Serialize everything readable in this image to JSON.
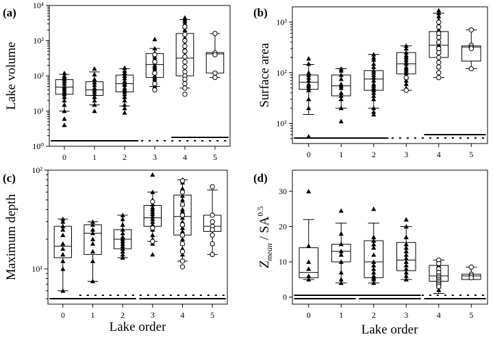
{
  "x_label": "Lake order",
  "chart_data": [
    {
      "panel": "(a)",
      "type": "box",
      "ylabel": "Lake volume",
      "yscale": "log",
      "ylim": [
        1,
        10000
      ],
      "yticks": [
        1,
        10,
        100,
        1000,
        10000
      ],
      "ytick_labels": [
        "10⁰",
        "10¹",
        "10²",
        "10³",
        "10⁴"
      ],
      "categories": [
        "0",
        "1",
        "2",
        "3",
        "4",
        "5"
      ],
      "boxes": [
        {
          "order": 0,
          "q1": 30,
          "median": 48,
          "q3": 78,
          "whisker_low": 10,
          "whisker_high": 110
        },
        {
          "order": 1,
          "q1": 28,
          "median": 40,
          "q3": 68,
          "whisker_low": 15,
          "whisker_high": 130
        },
        {
          "order": 2,
          "q1": 35,
          "median": 60,
          "q3": 105,
          "whisker_low": 14,
          "whisker_high": 160
        },
        {
          "order": 3,
          "q1": 90,
          "median": 210,
          "q3": 430,
          "whisker_low": 50,
          "whisker_high": 600
        },
        {
          "order": 4,
          "q1": 100,
          "median": 320,
          "q3": 1600,
          "whisker_low": 45,
          "whisker_high": 4000
        },
        {
          "order": 5,
          "q1": 120,
          "median": 420,
          "q3": 460,
          "whisker_low": 90,
          "whisker_high": 1600
        }
      ],
      "points": [
        {
          "order": 0,
          "y": [
            120,
            100,
            90,
            80,
            70,
            60,
            50,
            45,
            40,
            35,
            30,
            25,
            20,
            15,
            10,
            6,
            4
          ],
          "marker": "triangle"
        },
        {
          "order": 1,
          "y": [
            160,
            110,
            80,
            65,
            55,
            45,
            40,
            35,
            30,
            25,
            20,
            15,
            10
          ],
          "marker": "triangle"
        },
        {
          "order": 2,
          "y": [
            170,
            140,
            120,
            100,
            85,
            70,
            60,
            55,
            45,
            40,
            35,
            30,
            25,
            20,
            15,
            12,
            9
          ],
          "marker": "triangle"
        },
        {
          "order": 3,
          "y": [
            1100,
            600,
            450,
            400,
            350,
            300,
            250,
            200,
            180,
            160,
            140,
            120,
            100,
            90,
            80,
            70,
            60,
            50
          ],
          "marker": "triangle"
        },
        {
          "order": 3,
          "y": [
            400,
            250,
            120,
            60,
            40
          ],
          "marker": "circle"
        },
        {
          "order": 4,
          "y": [
            4500,
            4000,
            3500,
            3000,
            2500,
            2000,
            1500,
            1200,
            1000,
            800,
            600,
            500,
            400
          ],
          "marker": "triangle"
        },
        {
          "order": 4,
          "y": [
            2500,
            1500,
            1000,
            700,
            500,
            350,
            250,
            180,
            130,
            100,
            80,
            60,
            45,
            30
          ],
          "marker": "circle"
        },
        {
          "order": 5,
          "y": [
            1600,
            450,
            400,
            120,
            90
          ],
          "marker": "circle"
        }
      ],
      "groups": [
        {
          "from": 0,
          "to": 2,
          "level": 0,
          "style": "solid"
        },
        {
          "from": 3,
          "to": 5,
          "level": 0,
          "style": "dashed"
        },
        {
          "from": 4,
          "to": 5,
          "level": 1,
          "style": "solid"
        }
      ]
    },
    {
      "panel": "(b)",
      "type": "box",
      "ylabel": "Surface area",
      "yscale": "log",
      "ylim": [
        4,
        2000
      ],
      "yticks": [
        10,
        100,
        1000
      ],
      "ytick_labels": [
        "10¹",
        "10²",
        "10³"
      ],
      "categories": [
        "0",
        "1",
        "2",
        "3",
        "4",
        "5"
      ],
      "boxes": [
        {
          "order": 0,
          "q1": 47,
          "median": 65,
          "q3": 90,
          "whisker_low": 15,
          "whisker_high": 145
        },
        {
          "order": 1,
          "q1": 35,
          "median": 55,
          "q3": 90,
          "whisker_low": 20,
          "whisker_high": 120
        },
        {
          "order": 2,
          "q1": 45,
          "median": 75,
          "q3": 110,
          "whisker_low": 20,
          "whisker_high": 230
        },
        {
          "order": 3,
          "q1": 95,
          "median": 150,
          "q3": 250,
          "whisker_low": 45,
          "whisker_high": 340
        },
        {
          "order": 4,
          "q1": 200,
          "median": 350,
          "q3": 650,
          "whisker_low": 80,
          "whisker_high": 1500
        },
        {
          "order": 5,
          "q1": 170,
          "median": 320,
          "q3": 340,
          "whisker_low": 120,
          "whisker_high": 700
        }
      ],
      "points": [
        {
          "order": 0,
          "y": [
            190,
            150,
            100,
            90,
            80,
            70,
            60,
            55,
            50,
            45,
            30,
            20,
            5.5
          ],
          "marker": "triangle"
        },
        {
          "order": 1,
          "y": [
            120,
            110,
            90,
            75,
            60,
            55,
            50,
            40,
            35,
            30,
            20,
            11
          ],
          "marker": "triangle"
        },
        {
          "order": 2,
          "y": [
            230,
            200,
            180,
            150,
            130,
            110,
            100,
            90,
            80,
            70,
            60,
            55,
            50,
            45,
            40,
            35,
            30,
            20,
            17,
            15
          ],
          "marker": "triangle"
        },
        {
          "order": 3,
          "y": [
            340,
            300,
            250,
            220,
            200,
            180,
            160,
            150,
            130,
            120,
            110,
            100,
            90,
            80,
            70,
            60,
            50
          ],
          "marker": "triangle"
        },
        {
          "order": 3,
          "y": [
            80,
            45
          ],
          "marker": "circle"
        },
        {
          "order": 4,
          "y": [
            1700,
            1500,
            1300,
            1100,
            900,
            700,
            600,
            500,
            400,
            350,
            300,
            250
          ],
          "marker": "triangle"
        },
        {
          "order": 4,
          "y": [
            1000,
            800,
            600,
            500,
            400,
            300,
            250,
            200,
            160,
            130,
            100,
            80
          ],
          "marker": "circle"
        },
        {
          "order": 5,
          "y": [
            700,
            350,
            320,
            300,
            120
          ],
          "marker": "circle"
        }
      ],
      "groups": [
        {
          "from": 0,
          "to": 2,
          "level": 0,
          "style": "solid"
        },
        {
          "from": 3,
          "to": 5,
          "level": 0,
          "style": "dashed"
        },
        {
          "from": 4,
          "to": 5,
          "level": 1,
          "style": "solid"
        }
      ]
    },
    {
      "panel": "(c)",
      "type": "box",
      "ylabel": "Maximum depth",
      "yscale": "log",
      "ylim": [
        4.4,
        100
      ],
      "yticks": [
        10,
        100
      ],
      "ytick_labels": [
        "10¹",
        "10²"
      ],
      "categories": [
        "0",
        "1",
        "2",
        "3",
        "4",
        "5"
      ],
      "boxes": [
        {
          "order": 0,
          "q1": 13,
          "median": 17,
          "q3": 27,
          "whisker_low": 6,
          "whisker_high": 32
        },
        {
          "order": 1,
          "q1": 14,
          "median": 23,
          "q3": 28,
          "whisker_low": 7.5,
          "whisker_high": 30
        },
        {
          "order": 2,
          "q1": 16,
          "median": 20,
          "q3": 25,
          "whisker_low": 13,
          "whisker_high": 35
        },
        {
          "order": 3,
          "q1": 27,
          "median": 33,
          "q3": 44,
          "whisker_low": 19,
          "whisker_high": 60
        },
        {
          "order": 4,
          "q1": 22,
          "median": 34,
          "q3": 56,
          "whisker_low": 12,
          "whisker_high": 80
        },
        {
          "order": 5,
          "q1": 24,
          "median": 27,
          "q3": 35,
          "whisker_low": 14,
          "whisker_high": 63
        }
      ],
      "points": [
        {
          "order": 0,
          "y": [
            32,
            30,
            27,
            25,
            22,
            18,
            16,
            14,
            12,
            10,
            6
          ],
          "marker": "triangle"
        },
        {
          "order": 1,
          "y": [
            30,
            28,
            25,
            23,
            20,
            18,
            15,
            12,
            7.5
          ],
          "marker": "triangle"
        },
        {
          "order": 2,
          "y": [
            35,
            32,
            28,
            25,
            23,
            21,
            20,
            19,
            18,
            17,
            16,
            15,
            14,
            13
          ],
          "marker": "triangle"
        },
        {
          "order": 3,
          "y": [
            90,
            60,
            50,
            45,
            42,
            40,
            38,
            36,
            34,
            32,
            30,
            28,
            27,
            25,
            22,
            20,
            18,
            14
          ],
          "marker": "triangle"
        },
        {
          "order": 3,
          "y": [
            48,
            26,
            19
          ],
          "marker": "circle"
        },
        {
          "order": 4,
          "y": [
            80,
            75,
            65,
            55,
            50,
            45,
            40,
            38,
            35,
            33,
            30,
            28,
            26,
            24,
            22,
            20,
            18,
            16,
            14
          ],
          "marker": "triangle"
        },
        {
          "order": 4,
          "y": [
            78,
            60,
            45,
            35,
            28,
            22,
            18,
            15,
            12,
            10.5
          ],
          "marker": "circle"
        },
        {
          "order": 5,
          "y": [
            68,
            35,
            30,
            27,
            25,
            22,
            18,
            14
          ],
          "marker": "circle"
        }
      ],
      "groups": [
        {
          "from": 0,
          "to": 2,
          "level": 0,
          "style": "solid"
        },
        {
          "from": 1,
          "to": 5,
          "level": 1,
          "style": "dashed"
        },
        {
          "from": 3,
          "to": 5,
          "level": 0,
          "style": "solid"
        }
      ]
    },
    {
      "panel": "(d)",
      "type": "box",
      "ylabel": "Z_mean / SA^0.5",
      "yscale": "linear",
      "ylim": [
        -2,
        36
      ],
      "yticks": [
        0,
        10,
        20,
        30
      ],
      "ytick_labels": [
        "0",
        "10",
        "20",
        "30"
      ],
      "categories": [
        "0",
        "1",
        "2",
        "3",
        "4",
        "5"
      ],
      "boxes": [
        {
          "order": 0,
          "q1": 5.5,
          "median": 7,
          "q3": 14,
          "whisker_low": 5,
          "whisker_high": 22
        },
        {
          "order": 1,
          "q1": 10,
          "median": 13,
          "q3": 15,
          "whisker_low": 4,
          "whisker_high": 21
        },
        {
          "order": 2,
          "q1": 5.5,
          "median": 10,
          "q3": 16,
          "whisker_low": 4,
          "whisker_high": 21
        },
        {
          "order": 3,
          "q1": 7.5,
          "median": 10.5,
          "q3": 15.5,
          "whisker_low": 5,
          "whisker_high": 20
        },
        {
          "order": 4,
          "q1": 4.5,
          "median": 6,
          "q3": 9,
          "whisker_low": 1,
          "whisker_high": 10.5
        },
        {
          "order": 5,
          "q1": 5,
          "median": 6,
          "q3": 6.5,
          "whisker_low": 5,
          "whisker_high": 8.5
        }
      ],
      "points": [
        {
          "order": 0,
          "y": [
            30,
            14.5,
            10,
            8,
            6,
            5
          ],
          "marker": "triangle"
        },
        {
          "order": 1,
          "y": [
            24.5,
            18,
            15,
            13,
            12,
            10,
            7,
            5,
            4
          ],
          "marker": "triangle"
        },
        {
          "order": 2,
          "y": [
            25,
            17,
            16,
            15,
            14,
            12,
            10,
            9,
            8,
            7,
            6,
            5.5,
            5,
            4
          ],
          "marker": "triangle"
        },
        {
          "order": 3,
          "y": [
            22,
            20,
            17,
            15,
            14,
            13,
            12,
            11,
            10,
            9,
            8,
            7,
            6,
            5
          ],
          "marker": "triangle"
        },
        {
          "order": 4,
          "y": [
            10.5,
            9,
            8,
            7,
            6,
            5,
            4.5,
            4,
            3.5,
            3,
            2
          ],
          "marker": "triangle"
        },
        {
          "order": 4,
          "y": [
            10.5,
            9.5,
            8,
            7,
            6,
            5.5,
            5,
            4.5,
            4,
            3.5,
            3
          ],
          "marker": "circle"
        },
        {
          "order": 5,
          "y": [
            8.5,
            6.5,
            6,
            5.5
          ],
          "marker": "circle"
        }
      ],
      "groups": [
        {
          "from": 0,
          "to": 1,
          "level": 0,
          "style": "solid"
        },
        {
          "from": 2,
          "to": 3,
          "level": 0,
          "style": "solid"
        },
        {
          "from": 0,
          "to": 3,
          "level": 1,
          "style": "solid"
        },
        {
          "from": 3,
          "to": 5,
          "level": 1,
          "style": "dashed"
        },
        {
          "from": 4,
          "to": 5,
          "level": 0,
          "style": "solid"
        }
      ]
    }
  ]
}
